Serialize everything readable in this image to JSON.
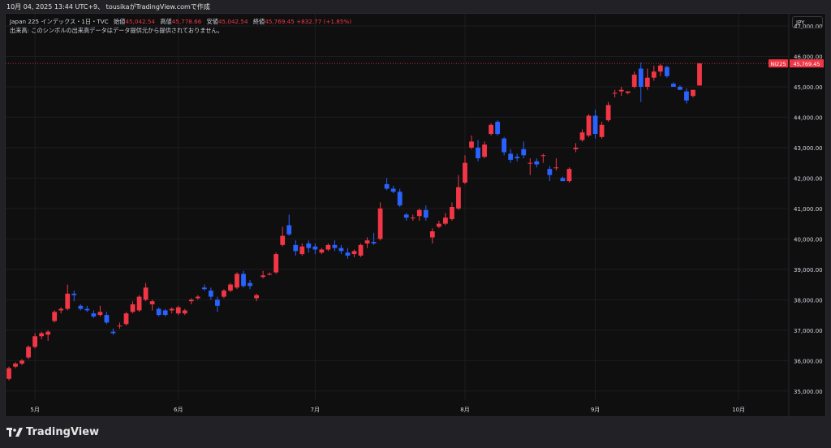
{
  "header": {
    "caption": "10月 04, 2025 13:44 UTC+9、 tousikaがTradingView.comで作成"
  },
  "legend": {
    "symbol": "Japan 225 インデックス・1日・TVC",
    "open_label": "始値",
    "open_value": "45,042.54",
    "high_label": "高値",
    "high_value": "45,778.66",
    "low_label": "安値",
    "low_value": "45,042.54",
    "close_label": "終値",
    "close_value": "45,769.45",
    "change": "+832.77 (+1.85%)"
  },
  "volume_notice": "出来高: このシンボルの出来高データはデータ提供元から提供されておりません。",
  "currency_button": "JPY",
  "price_marker": {
    "symbol": "NI225",
    "value": "45,769.45"
  },
  "brand": "TradingView",
  "colors": {
    "up": "#f23645",
    "down": "#2962ff",
    "background": "#0f0f10",
    "grid": "#1e1e22",
    "text": "#d1d4dc"
  },
  "chart_data": {
    "type": "candlestick",
    "ylim": [
      34700,
      47400
    ],
    "y_ticks": [
      "35,000.00",
      "36,000.00",
      "37,000.00",
      "38,000.00",
      "39,000.00",
      "40,000.00",
      "41,000.00",
      "42,000.00",
      "43,000.00",
      "44,000.00",
      "45,000.00",
      "46,000.00",
      "47,000.00"
    ],
    "y_tick_values": [
      35000,
      36000,
      37000,
      38000,
      39000,
      40000,
      41000,
      42000,
      43000,
      44000,
      45000,
      46000,
      47000
    ],
    "x_month_labels": [
      {
        "label": "5月",
        "index": 4
      },
      {
        "label": "6月",
        "index": 26
      },
      {
        "label": "7月",
        "index": 47
      },
      {
        "label": "8月",
        "index": 70
      },
      {
        "label": "9月",
        "index": 90
      },
      {
        "label": "10月",
        "index": 112
      }
    ],
    "candles": [
      {
        "o": 35400,
        "h": 35800,
        "l": 35350,
        "c": 35750
      },
      {
        "o": 35800,
        "h": 35950,
        "l": 35750,
        "c": 35900
      },
      {
        "o": 35900,
        "h": 36050,
        "l": 35850,
        "c": 36000
      },
      {
        "o": 36100,
        "h": 36500,
        "l": 36050,
        "c": 36450
      },
      {
        "o": 36450,
        "h": 36900,
        "l": 36400,
        "c": 36800
      },
      {
        "o": 36800,
        "h": 36950,
        "l": 36700,
        "c": 36900
      },
      {
        "o": 36850,
        "h": 37000,
        "l": 36650,
        "c": 36950
      },
      {
        "o": 37300,
        "h": 37650,
        "l": 37250,
        "c": 37600
      },
      {
        "o": 37650,
        "h": 37750,
        "l": 37550,
        "c": 37700
      },
      {
        "o": 37700,
        "h": 38500,
        "l": 37650,
        "c": 38200
      },
      {
        "o": 38200,
        "h": 38300,
        "l": 37950,
        "c": 38150
      },
      {
        "o": 37800,
        "h": 37850,
        "l": 37650,
        "c": 37700
      },
      {
        "o": 37700,
        "h": 37800,
        "l": 37600,
        "c": 37650
      },
      {
        "o": 37550,
        "h": 37650,
        "l": 37400,
        "c": 37450
      },
      {
        "o": 37500,
        "h": 37800,
        "l": 37450,
        "c": 37600
      },
      {
        "o": 37500,
        "h": 37600,
        "l": 37200,
        "c": 37250
      },
      {
        "o": 36950,
        "h": 37050,
        "l": 36850,
        "c": 36900
      },
      {
        "o": 37150,
        "h": 37250,
        "l": 37050,
        "c": 37150
      },
      {
        "o": 37200,
        "h": 37600,
        "l": 37150,
        "c": 37550
      },
      {
        "o": 37600,
        "h": 37950,
        "l": 37550,
        "c": 37850
      },
      {
        "o": 37650,
        "h": 38150,
        "l": 37600,
        "c": 38100
      },
      {
        "o": 38000,
        "h": 38550,
        "l": 37950,
        "c": 38400
      },
      {
        "o": 37850,
        "h": 38000,
        "l": 37650,
        "c": 37950
      },
      {
        "o": 37700,
        "h": 37750,
        "l": 37450,
        "c": 37500
      },
      {
        "o": 37650,
        "h": 37700,
        "l": 37450,
        "c": 37500
      },
      {
        "o": 37650,
        "h": 37750,
        "l": 37550,
        "c": 37700
      },
      {
        "o": 37550,
        "h": 37800,
        "l": 37500,
        "c": 37750
      },
      {
        "o": 37550,
        "h": 37700,
        "l": 37500,
        "c": 37650
      },
      {
        "o": 37950,
        "h": 38050,
        "l": 37850,
        "c": 38000
      },
      {
        "o": 38050,
        "h": 38150,
        "l": 38000,
        "c": 38100
      },
      {
        "o": 38400,
        "h": 38500,
        "l": 38300,
        "c": 38350
      },
      {
        "o": 38300,
        "h": 38400,
        "l": 38000,
        "c": 38100
      },
      {
        "o": 38000,
        "h": 38100,
        "l": 37600,
        "c": 37800
      },
      {
        "o": 38100,
        "h": 38350,
        "l": 38050,
        "c": 38300
      },
      {
        "o": 38300,
        "h": 38550,
        "l": 38250,
        "c": 38500
      },
      {
        "o": 38400,
        "h": 38900,
        "l": 38350,
        "c": 38850
      },
      {
        "o": 38850,
        "h": 38950,
        "l": 38400,
        "c": 38450
      },
      {
        "o": 38550,
        "h": 38650,
        "l": 38350,
        "c": 38450
      },
      {
        "o": 38050,
        "h": 38200,
        "l": 37950,
        "c": 38150
      },
      {
        "o": 38750,
        "h": 38950,
        "l": 38700,
        "c": 38800
      },
      {
        "o": 38850,
        "h": 38900,
        "l": 38800,
        "c": 38850
      },
      {
        "o": 38900,
        "h": 39550,
        "l": 38850,
        "c": 39500
      },
      {
        "o": 39800,
        "h": 40400,
        "l": 39750,
        "c": 40100
      },
      {
        "o": 40450,
        "h": 40800,
        "l": 40100,
        "c": 40150
      },
      {
        "o": 39800,
        "h": 39950,
        "l": 39450,
        "c": 39600
      },
      {
        "o": 39500,
        "h": 39850,
        "l": 39450,
        "c": 39750
      },
      {
        "o": 39850,
        "h": 39950,
        "l": 39550,
        "c": 39700
      },
      {
        "o": 39750,
        "h": 39850,
        "l": 39500,
        "c": 39650
      },
      {
        "o": 39550,
        "h": 39700,
        "l": 39500,
        "c": 39650
      },
      {
        "o": 39650,
        "h": 39850,
        "l": 39600,
        "c": 39800
      },
      {
        "o": 39800,
        "h": 39950,
        "l": 39600,
        "c": 39700
      },
      {
        "o": 39700,
        "h": 39800,
        "l": 39500,
        "c": 39600
      },
      {
        "o": 39550,
        "h": 39700,
        "l": 39350,
        "c": 39450
      },
      {
        "o": 39500,
        "h": 39650,
        "l": 39400,
        "c": 39600
      },
      {
        "o": 39450,
        "h": 39850,
        "l": 39400,
        "c": 39800
      },
      {
        "o": 39850,
        "h": 40050,
        "l": 39700,
        "c": 39950
      },
      {
        "o": 39900,
        "h": 40200,
        "l": 39800,
        "c": 39850
      },
      {
        "o": 40000,
        "h": 41200,
        "l": 39950,
        "c": 41000
      },
      {
        "o": 41800,
        "h": 42000,
        "l": 41600,
        "c": 41650
      },
      {
        "o": 41650,
        "h": 41750,
        "l": 41500,
        "c": 41550
      },
      {
        "o": 41550,
        "h": 41650,
        "l": 41050,
        "c": 41100
      },
      {
        "o": 40800,
        "h": 40850,
        "l": 40600,
        "c": 40700
      },
      {
        "o": 40700,
        "h": 40800,
        "l": 40600,
        "c": 40700
      },
      {
        "o": 40750,
        "h": 41000,
        "l": 40600,
        "c": 40950
      },
      {
        "o": 40950,
        "h": 41100,
        "l": 40600,
        "c": 40700
      },
      {
        "o": 40050,
        "h": 40350,
        "l": 39850,
        "c": 40250
      },
      {
        "o": 40400,
        "h": 40600,
        "l": 40350,
        "c": 40500
      },
      {
        "o": 40500,
        "h": 40850,
        "l": 40450,
        "c": 40700
      },
      {
        "o": 40650,
        "h": 41200,
        "l": 40600,
        "c": 41050
      },
      {
        "o": 41000,
        "h": 42100,
        "l": 40950,
        "c": 41700
      },
      {
        "o": 41850,
        "h": 42750,
        "l": 41800,
        "c": 42500
      },
      {
        "o": 43000,
        "h": 43400,
        "l": 42950,
        "c": 43200
      },
      {
        "o": 43000,
        "h": 43250,
        "l": 42550,
        "c": 42650
      },
      {
        "o": 42700,
        "h": 43200,
        "l": 42650,
        "c": 43100
      },
      {
        "o": 43450,
        "h": 43800,
        "l": 43400,
        "c": 43750
      },
      {
        "o": 43850,
        "h": 43900,
        "l": 43400,
        "c": 43450
      },
      {
        "o": 43300,
        "h": 43350,
        "l": 42750,
        "c": 42850
      },
      {
        "o": 42800,
        "h": 42950,
        "l": 42500,
        "c": 42600
      },
      {
        "o": 42700,
        "h": 42800,
        "l": 42550,
        "c": 42650
      },
      {
        "o": 42950,
        "h": 43200,
        "l": 42650,
        "c": 42750
      },
      {
        "o": 42500,
        "h": 42650,
        "l": 42100,
        "c": 42500
      },
      {
        "o": 42550,
        "h": 42650,
        "l": 42350,
        "c": 42450
      },
      {
        "o": 42750,
        "h": 42800,
        "l": 42500,
        "c": 42750
      },
      {
        "o": 42300,
        "h": 42400,
        "l": 41900,
        "c": 42100
      },
      {
        "o": 42350,
        "h": 42650,
        "l": 42250,
        "c": 42350
      },
      {
        "o": 42000,
        "h": 42050,
        "l": 41900,
        "c": 41900
      },
      {
        "o": 41900,
        "h": 42350,
        "l": 41850,
        "c": 42300
      },
      {
        "o": 42950,
        "h": 43150,
        "l": 42850,
        "c": 43000
      },
      {
        "o": 43250,
        "h": 43600,
        "l": 43200,
        "c": 43500
      },
      {
        "o": 43400,
        "h": 44100,
        "l": 43350,
        "c": 44050
      },
      {
        "o": 44050,
        "h": 44250,
        "l": 43300,
        "c": 43450
      },
      {
        "o": 43350,
        "h": 43850,
        "l": 43300,
        "c": 43750
      },
      {
        "o": 43900,
        "h": 44500,
        "l": 43850,
        "c": 44400
      },
      {
        "o": 44800,
        "h": 44900,
        "l": 44650,
        "c": 44800
      },
      {
        "o": 44850,
        "h": 45000,
        "l": 44700,
        "c": 44900
      },
      {
        "o": 44800,
        "h": 44850,
        "l": 44750,
        "c": 44850
      },
      {
        "o": 45000,
        "h": 45500,
        "l": 44950,
        "c": 45400
      },
      {
        "o": 45600,
        "h": 45800,
        "l": 44500,
        "c": 45000
      },
      {
        "o": 45000,
        "h": 45600,
        "l": 44900,
        "c": 45300
      },
      {
        "o": 45300,
        "h": 45700,
        "l": 45200,
        "c": 45500
      },
      {
        "o": 45500,
        "h": 45750,
        "l": 45350,
        "c": 45700
      },
      {
        "o": 45650,
        "h": 45700,
        "l": 45300,
        "c": 45350
      },
      {
        "o": 45100,
        "h": 45150,
        "l": 45000,
        "c": 45000
      },
      {
        "o": 45000,
        "h": 45050,
        "l": 44900,
        "c": 44900
      },
      {
        "o": 44850,
        "h": 44950,
        "l": 44450,
        "c": 44550
      },
      {
        "o": 44700,
        "h": 44900,
        "l": 44650,
        "c": 44900
      },
      {
        "o": 45042.54,
        "h": 45778.66,
        "l": 45042.54,
        "c": 45769.45
      }
    ]
  }
}
